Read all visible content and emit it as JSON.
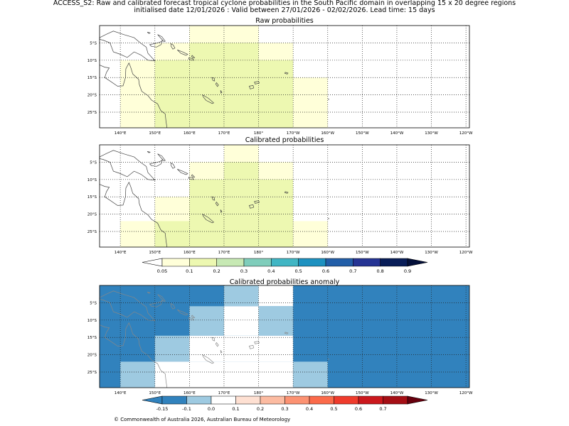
{
  "figure": {
    "title_line1": "ACCESS_S2: Raw and calibrated forecast tropical cyclone probabilities in the South Pacific domain in overlapping 15 x 20 degree regions",
    "title_line2": "initialised date 12/01/2026 :  Valid between 27/01/2026 - 02/02/2026. Lead time: 15 days",
    "footer": "© Commonwealth of Australia 2026, Australian Bureau of Meteorology"
  },
  "axes": {
    "xticks": [
      "140°E",
      "150°E",
      "160°E",
      "170°E",
      "180°",
      "170°W",
      "160°W",
      "150°W",
      "140°W",
      "130°W",
      "120°W"
    ],
    "yticks": [
      "5°S",
      "10°S",
      "15°S",
      "20°S",
      "25°S"
    ]
  },
  "colorbars": {
    "probability": {
      "labels": [
        "0.05",
        "0.1",
        "0.2",
        "0.3",
        "0.4",
        "0.5",
        "0.6",
        "0.7",
        "0.8",
        "0.9"
      ],
      "colors": [
        "#ffffff",
        "#ffffd9",
        "#edf8b1",
        "#c7e9b4",
        "#7fcdbb",
        "#41b6c4",
        "#1d91c0",
        "#225ea8",
        "#253494",
        "#081d58",
        "#04103a"
      ]
    },
    "anomaly": {
      "labels": [
        "-0.15",
        "-0.1",
        "0.0",
        "0.1",
        "0.2",
        "0.3",
        "0.4",
        "0.5",
        "0.6",
        "0.7"
      ],
      "colors": [
        "#3182bd",
        "#3182bd",
        "#9ecae1",
        "#ffffff",
        "#fee0d2",
        "#fcbba1",
        "#fc9272",
        "#fb6a4a",
        "#ef3b2c",
        "#cb181d",
        "#a50f15",
        "#67000d"
      ]
    }
  },
  "chart_data": [
    {
      "type": "heatmap",
      "title": "Raw probabilities",
      "lon_range": [
        134,
        241
      ],
      "lat_range": [
        -29.5,
        0
      ],
      "cells": [
        {
          "lon": [
            160,
            180
          ],
          "lat": [
            -5,
            0
          ],
          "value": 0.07
        },
        {
          "lon": [
            150,
            160
          ],
          "lat": [
            -10,
            -5
          ],
          "value": 0.07
        },
        {
          "lon": [
            160,
            180
          ],
          "lat": [
            -15,
            -5
          ],
          "value": 0.12
        },
        {
          "lon": [
            180,
            190
          ],
          "lat": [
            -15,
            -5
          ],
          "value": 0.07
        },
        {
          "lon": [
            140,
            150
          ],
          "lat": [
            -29.5,
            -10
          ],
          "value": 0.07
        },
        {
          "lon": [
            150,
            190
          ],
          "lat": [
            -29.5,
            -10
          ],
          "value": 0.12
        },
        {
          "lon": [
            190,
            200
          ],
          "lat": [
            -29.5,
            -15
          ],
          "value": 0.07
        }
      ]
    },
    {
      "type": "heatmap",
      "title": "Calibrated probabilities",
      "lon_range": [
        134,
        241
      ],
      "lat_range": [
        -29.5,
        0
      ],
      "cells": [
        {
          "lon": [
            170,
            180
          ],
          "lat": [
            -5,
            0
          ],
          "value": 0.07
        },
        {
          "lon": [
            160,
            170
          ],
          "lat": [
            -10,
            -5
          ],
          "value": 0.07
        },
        {
          "lon": [
            170,
            180
          ],
          "lat": [
            -10,
            -5
          ],
          "value": 0.12
        },
        {
          "lon": [
            180,
            190
          ],
          "lat": [
            -10,
            -5
          ],
          "value": 0.07
        },
        {
          "lon": [
            160,
            170
          ],
          "lat": [
            -15,
            -10
          ],
          "value": 0.12
        },
        {
          "lon": [
            170,
            190
          ],
          "lat": [
            -15,
            -10
          ],
          "value": 0.12
        },
        {
          "lon": [
            150,
            160
          ],
          "lat": [
            -22,
            -15
          ],
          "value": 0.07
        },
        {
          "lon": [
            160,
            190
          ],
          "lat": [
            -29.5,
            -15
          ],
          "value": 0.12
        },
        {
          "lon": [
            140,
            160
          ],
          "lat": [
            -29.5,
            -22
          ],
          "value": 0.07
        },
        {
          "lon": [
            150,
            160
          ],
          "lat": [
            -29.5,
            -22
          ],
          "value": 0.12
        },
        {
          "lon": [
            190,
            200
          ],
          "lat": [
            -29.5,
            -22
          ],
          "value": 0.07
        }
      ]
    },
    {
      "type": "heatmap",
      "title": "Calibrated probabilities anomaly",
      "lon_range": [
        134,
        241
      ],
      "lat_range": [
        -29.5,
        0
      ],
      "background_value": -0.2,
      "cells": [
        {
          "lon": [
            170,
            180
          ],
          "lat": [
            -6,
            0
          ],
          "value": -0.05
        },
        {
          "lon": [
            180,
            190
          ],
          "lat": [
            -6,
            0
          ],
          "value": 0.0
        },
        {
          "lon": [
            160,
            170
          ],
          "lat": [
            -14.5,
            -6
          ],
          "value": -0.05
        },
        {
          "lon": [
            170,
            180
          ],
          "lat": [
            -14.5,
            -6
          ],
          "value": 0.0
        },
        {
          "lon": [
            180,
            190
          ],
          "lat": [
            -14.5,
            -6
          ],
          "value": -0.05
        },
        {
          "lon": [
            150,
            160
          ],
          "lat": [
            -22,
            -14.5
          ],
          "value": -0.05
        },
        {
          "lon": [
            160,
            190
          ],
          "lat": [
            -22,
            -14.5
          ],
          "value": 0.0
        },
        {
          "lon": [
            140,
            150
          ],
          "lat": [
            -29.5,
            -22
          ],
          "value": -0.05
        },
        {
          "lon": [
            150,
            190
          ],
          "lat": [
            -29.5,
            -22
          ],
          "value": 0.0
        },
        {
          "lon": [
            190,
            200
          ],
          "lat": [
            -29.5,
            -22
          ],
          "value": -0.05
        }
      ]
    }
  ]
}
